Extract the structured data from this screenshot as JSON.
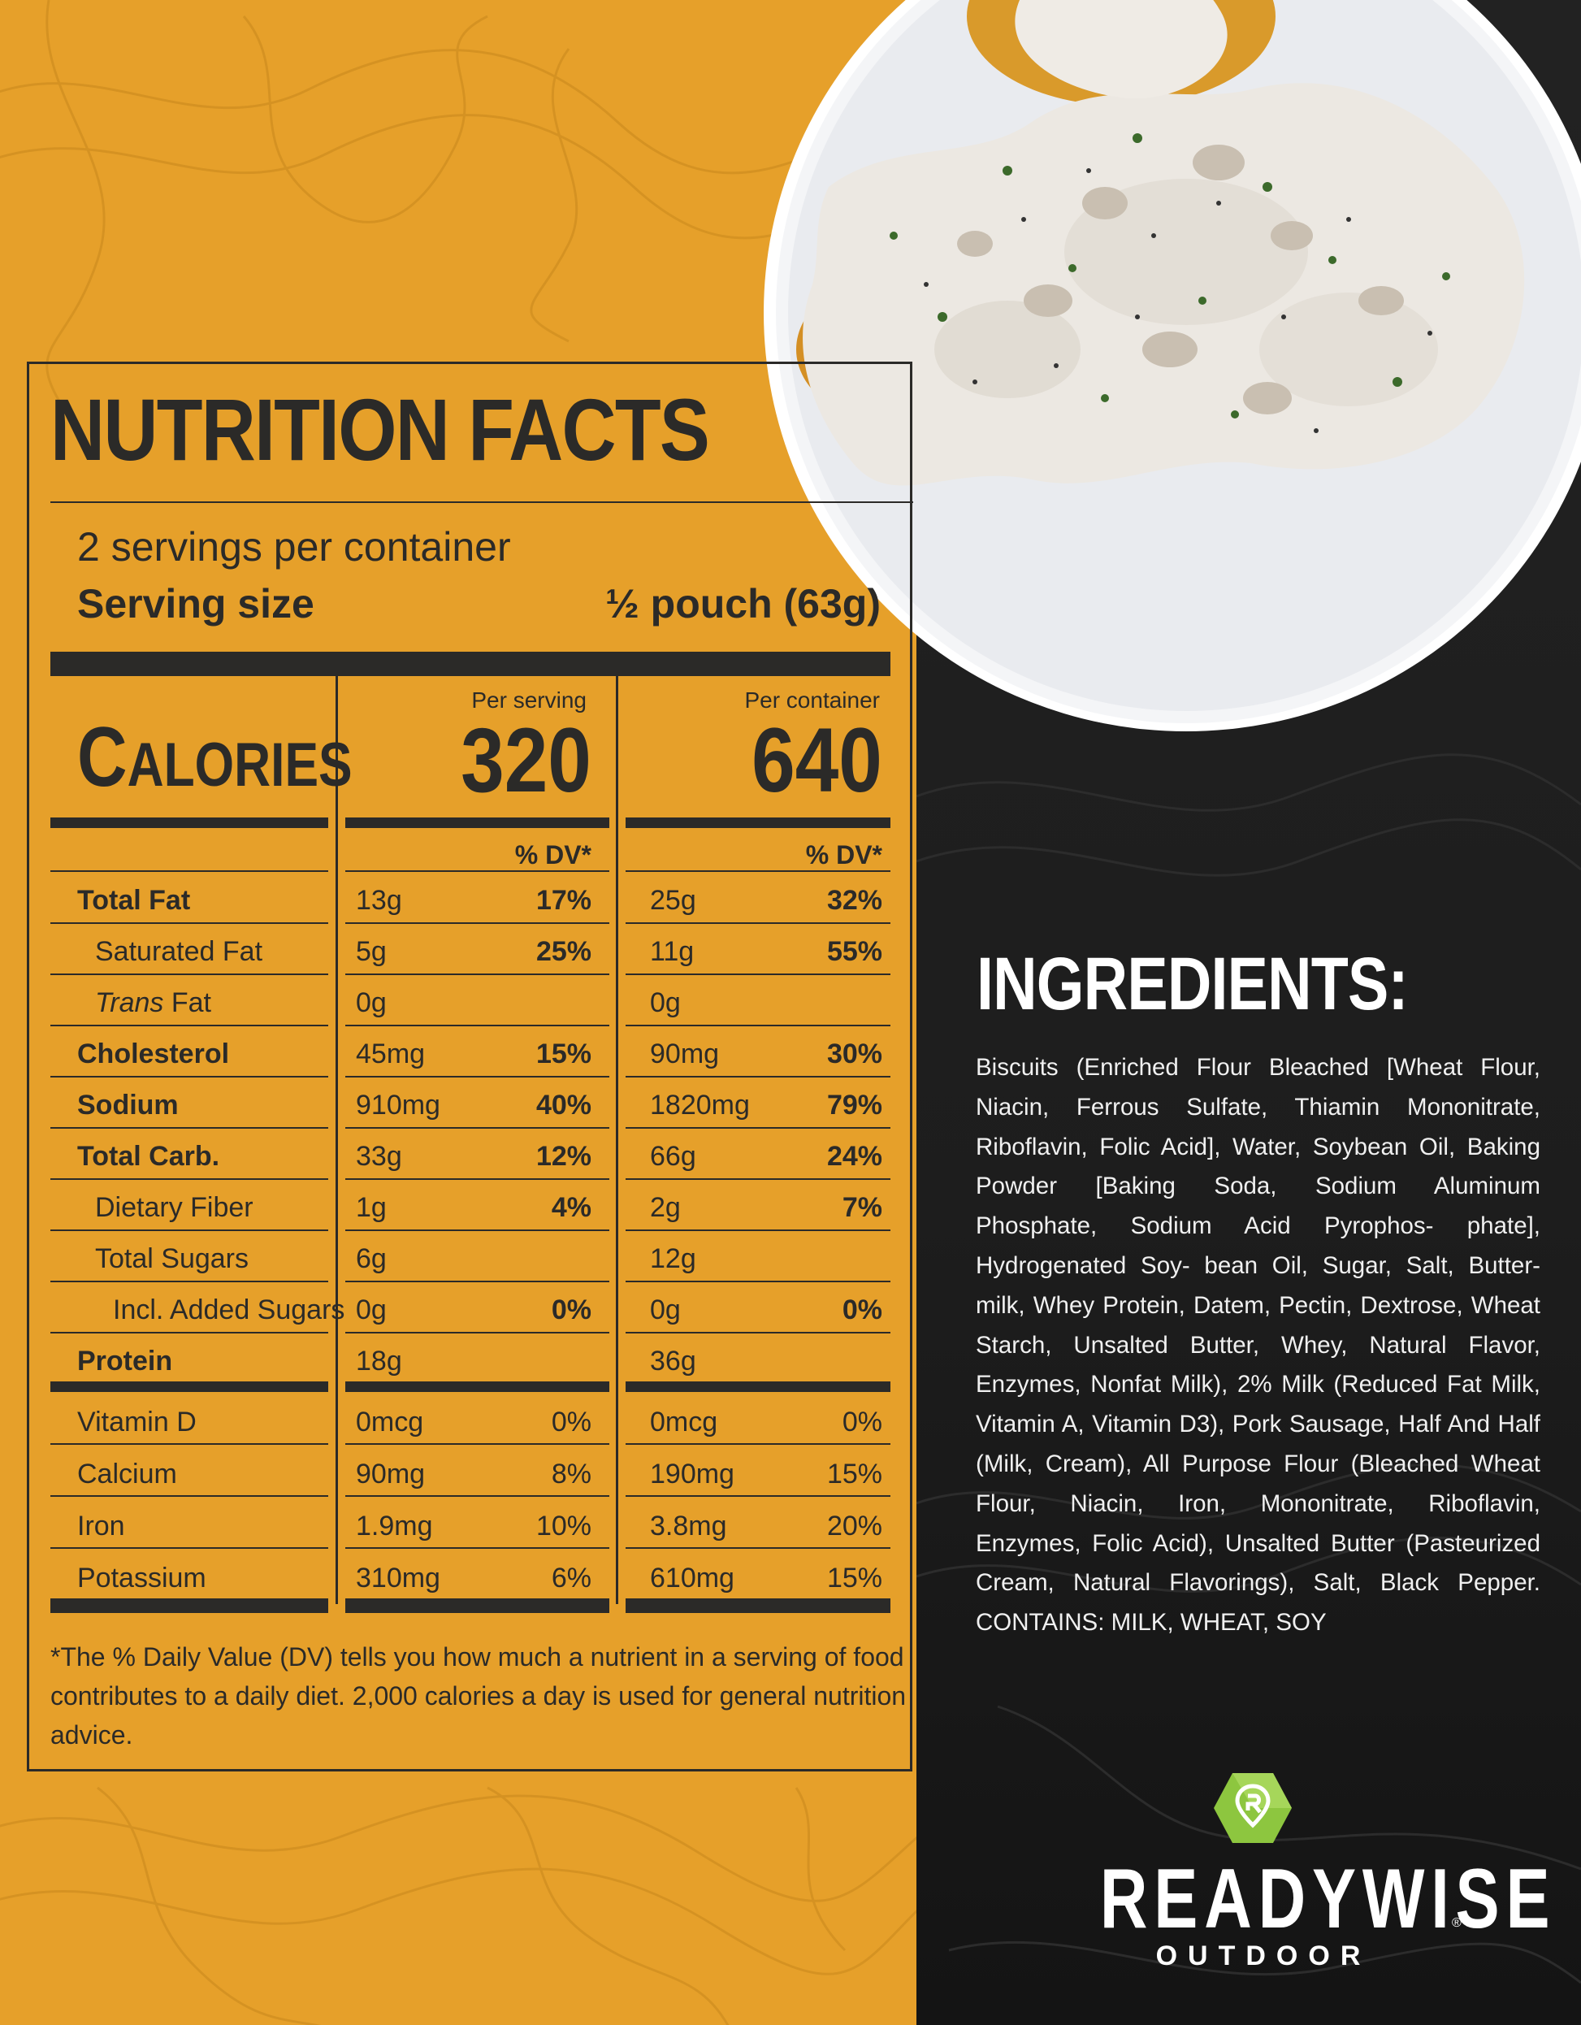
{
  "nutrition": {
    "title": "NUTRITION FACTS",
    "servings_per_container": "2 servings per container",
    "serving_size_label": "Serving size",
    "serving_size_value": "½ pouch (63g)",
    "calories_label_first": "C",
    "calories_label_rest": "ALORIES",
    "per_serving_label": "Per serving",
    "per_container_label": "Per container",
    "calories_per_serving": "320",
    "calories_per_container": "640",
    "dv_header": "% DV*",
    "rows": [
      {
        "label": "Total Fat",
        "s_amt": "13g",
        "s_dv": "17%",
        "c_amt": "25g",
        "c_dv": "32%"
      },
      {
        "label": "Saturated Fat",
        "s_amt": "5g",
        "s_dv": "25%",
        "c_amt": "11g",
        "c_dv": "55%"
      },
      {
        "label_italic": "Trans",
        "label_rest": " Fat",
        "s_amt": "0g",
        "s_dv": "",
        "c_amt": "0g",
        "c_dv": ""
      },
      {
        "label": "Cholesterol",
        "s_amt": "45mg",
        "s_dv": "15%",
        "c_amt": "90mg",
        "c_dv": "30%"
      },
      {
        "label": "Sodium",
        "s_amt": "910mg",
        "s_dv": "40%",
        "c_amt": "1820mg",
        "c_dv": "79%"
      },
      {
        "label": "Total Carb.",
        "s_amt": "33g",
        "s_dv": "12%",
        "c_amt": "66g",
        "c_dv": "24%"
      },
      {
        "label": "Dietary Fiber",
        "s_amt": "1g",
        "s_dv": "4%",
        "c_amt": "2g",
        "c_dv": "7%"
      },
      {
        "label": "Total Sugars",
        "s_amt": "6g",
        "s_dv": "",
        "c_amt": "12g",
        "c_dv": ""
      },
      {
        "label": "Incl. Added Sugars",
        "s_amt": "0g",
        "s_dv": "0%",
        "c_amt": "0g",
        "c_dv": "0%"
      },
      {
        "label": "Protein",
        "s_amt": "18g",
        "s_dv": "",
        "c_amt": "36g",
        "c_dv": ""
      }
    ],
    "vitamins": [
      {
        "label": "Vitamin D",
        "s_amt": "0mcg",
        "s_dv": "0%",
        "c_amt": "0mcg",
        "c_dv": "0%"
      },
      {
        "label": "Calcium",
        "s_amt": "90mg",
        "s_dv": "8%",
        "c_amt": "190mg",
        "c_dv": "15%"
      },
      {
        "label": "Iron",
        "s_amt": "1.9mg",
        "s_dv": "10%",
        "c_amt": "3.8mg",
        "c_dv": "20%"
      },
      {
        "label": "Potassium",
        "s_amt": "310mg",
        "s_dv": "6%",
        "c_amt": "610mg",
        "c_dv": "15%"
      }
    ],
    "footnote": "*The % Daily Value (DV) tells you how much a nutrient in a serving of food contributes to a daily diet. 2,000 calories a day is used for general nutrition advice."
  },
  "ingredients": {
    "title": "INGREDIENTS:",
    "text": "Biscuits (Enriched Flour Bleached [Wheat Flour, Niacin, Ferrous Sulfate, Thiamin Mononitrate, Riboflavin, Folic Acid], Water, Soybean Oil, Baking Powder [Baking Soda, Sodium Aluminum Phosphate, Sodium Acid Pyrophos- phate], Hydrogenated Soy- bean Oil, Sugar, Salt, Butter- milk, Whey Protein, Datem, Pectin, Dextrose, Wheat Starch, Unsalted Butter, Whey, Natural Flavor, Enzymes, Nonfat Milk), 2% Milk (Reduced Fat Milk, Vitamin A, Vitamin D3), Pork Sausage, Half And Half (Milk, Cream), All Purpose Flour (Bleached Wheat Flour, Niacin, Iron, Mononitrate, Riboflavin, Enzymes, Folic Acid), Unsalted Butter (Pasteurized Cream, Natural Flavorings), Salt, Black Pepper. CONTAINS: MILK, WHEAT, SOY"
  },
  "brand": {
    "name": "READYWISE",
    "registered": "®",
    "sub": "OUTDOOR"
  },
  "colors": {
    "label_bg": "#e6a02a",
    "ink": "#2b2a28",
    "dark_panel": "#1d1d1d",
    "logo_green": "#8dc63f"
  },
  "icons": [
    "map-pin-r-logo-icon"
  ]
}
